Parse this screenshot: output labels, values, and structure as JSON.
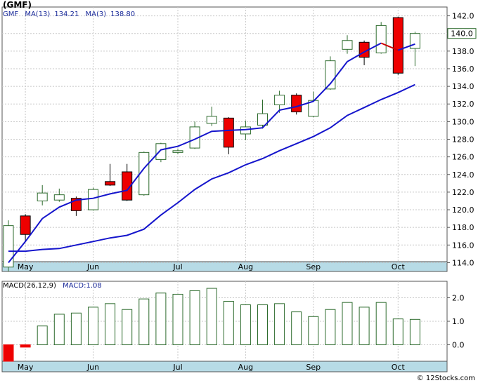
{
  "header": {
    "ticker": "(GMF)",
    "legend": [
      {
        "label": "GMF",
        "value": ""
      },
      {
        "label": "MA(13)",
        "value": "134.21"
      },
      {
        "label": "MA(3)",
        "value": "138.80"
      }
    ]
  },
  "macd_legend": {
    "label": "MACD(26,12,9)",
    "value_label": "MACD:1.08"
  },
  "watermark": "© 12Stocks.com",
  "last_price_label": "140.0",
  "colors": {
    "up": "#ffffff",
    "down": "#ee0000",
    "ma13": "#1515cc",
    "ma3": "#1515cc",
    "ma3_recent": "#cc0000",
    "axis_band": "#b7dbe6",
    "grid": "#c8c8c8",
    "macd_bar": "#2d6b2d"
  },
  "chart_data": [
    {
      "type": "candlestick",
      "title": "(GMF)",
      "grid": true,
      "y_ticks": [
        114.0,
        116.0,
        118.0,
        120.0,
        122.0,
        124.0,
        126.0,
        128.0,
        130.0,
        132.0,
        134.0,
        136.0,
        138.0,
        140.0,
        142.0
      ],
      "ylim": [
        113.0,
        143.0
      ],
      "x_month_labels": [
        {
          "label": "May",
          "at": 1.0
        },
        {
          "label": "Jun",
          "at": 5.0
        },
        {
          "label": "Jul",
          "at": 10.0
        },
        {
          "label": "Aug",
          "at": 14.0
        },
        {
          "label": "Sep",
          "at": 18.0
        },
        {
          "label": "Oct",
          "at": 23.0
        }
      ],
      "candles": [
        {
          "o": 113.5,
          "h": 118.8,
          "l": 113.0,
          "c": 118.2
        },
        {
          "o": 119.3,
          "h": 119.5,
          "l": 116.4,
          "c": 117.2
        },
        {
          "o": 121.0,
          "h": 122.8,
          "l": 120.5,
          "c": 121.9
        },
        {
          "o": 121.1,
          "h": 122.4,
          "l": 120.9,
          "c": 121.7
        },
        {
          "o": 121.3,
          "h": 121.5,
          "l": 119.3,
          "c": 119.9
        },
        {
          "o": 120.0,
          "h": 122.5,
          "l": 119.9,
          "c": 122.3
        },
        {
          "o": 123.2,
          "h": 125.2,
          "l": 122.7,
          "c": 122.8
        },
        {
          "o": 124.3,
          "h": 125.2,
          "l": 121.0,
          "c": 121.1
        },
        {
          "o": 121.7,
          "h": 126.6,
          "l": 121.6,
          "c": 126.5
        },
        {
          "o": 125.7,
          "h": 127.6,
          "l": 125.4,
          "c": 127.5
        },
        {
          "o": 126.5,
          "h": 126.9,
          "l": 126.3,
          "c": 126.7
        },
        {
          "o": 127.0,
          "h": 130.0,
          "l": 126.9,
          "c": 129.4
        },
        {
          "o": 129.8,
          "h": 131.7,
          "l": 129.5,
          "c": 130.6
        },
        {
          "o": 130.4,
          "h": 130.5,
          "l": 126.3,
          "c": 127.1
        },
        {
          "o": 128.6,
          "h": 130.1,
          "l": 127.9,
          "c": 129.4
        },
        {
          "o": 129.6,
          "h": 132.5,
          "l": 129.2,
          "c": 130.9
        },
        {
          "o": 131.9,
          "h": 133.5,
          "l": 131.0,
          "c": 133.0
        },
        {
          "o": 133.0,
          "h": 133.2,
          "l": 130.8,
          "c": 131.1
        },
        {
          "o": 130.6,
          "h": 133.4,
          "l": 130.5,
          "c": 132.4
        },
        {
          "o": 133.7,
          "h": 137.4,
          "l": 133.6,
          "c": 136.9
        },
        {
          "o": 138.2,
          "h": 139.8,
          "l": 137.7,
          "c": 139.2
        },
        {
          "o": 139.0,
          "h": 139.2,
          "l": 136.4,
          "c": 137.3
        },
        {
          "o": 137.8,
          "h": 141.3,
          "l": 137.7,
          "c": 140.9
        },
        {
          "o": 141.8,
          "h": 141.9,
          "l": 135.3,
          "c": 135.5
        },
        {
          "o": 138.3,
          "h": 140.2,
          "l": 136.3,
          "c": 140.0
        }
      ],
      "ma13": [
        115.3,
        115.3,
        115.5,
        115.6,
        116.0,
        116.4,
        116.8,
        117.1,
        117.8,
        119.4,
        120.8,
        122.3,
        123.5,
        124.2,
        125.1,
        125.8,
        126.7,
        127.5,
        128.3,
        129.3,
        130.7,
        131.6,
        132.5,
        133.3,
        134.2
      ],
      "ma3": [
        114.0,
        116.4,
        119.0,
        120.3,
        121.1,
        121.3,
        121.8,
        122.2,
        124.7,
        126.8,
        127.2,
        128.0,
        128.9,
        129.0,
        129.1,
        129.3,
        131.3,
        131.7,
        132.3,
        134.3,
        136.8,
        137.9,
        138.9,
        138.1,
        138.8
      ],
      "ma3_recent_segment_start": 22,
      "ma3_recent_segment_end": 23
    },
    {
      "type": "bar",
      "title": "MACD(26,12,9)",
      "y_ticks": [
        0.0,
        1.0,
        2.0
      ],
      "ylim": [
        -0.7,
        2.7
      ],
      "values": [
        -0.7,
        -0.1,
        0.8,
        1.3,
        1.35,
        1.6,
        1.75,
        1.5,
        1.95,
        2.2,
        2.15,
        2.3,
        2.4,
        1.85,
        1.7,
        1.7,
        1.75,
        1.4,
        1.2,
        1.5,
        1.8,
        1.6,
        1.8,
        1.1,
        1.08
      ]
    }
  ]
}
